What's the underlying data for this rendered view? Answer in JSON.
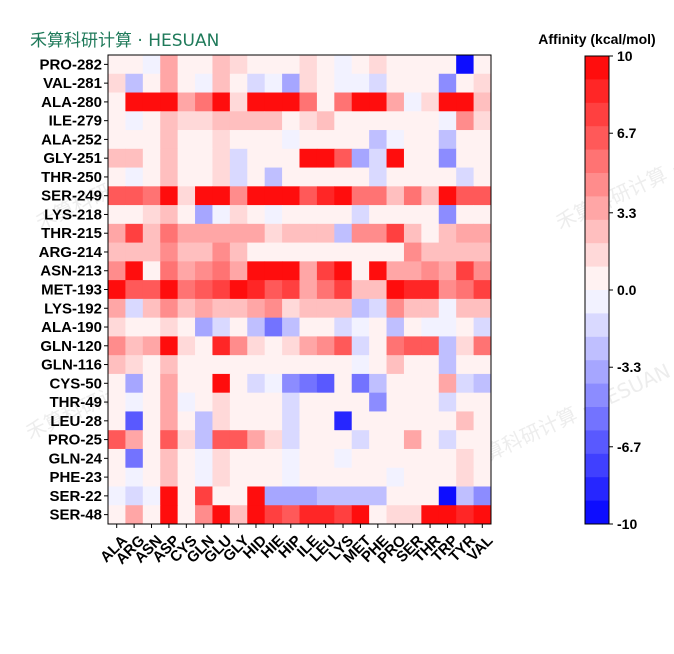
{
  "brand": {
    "label": "禾算科研计算 · HESUAN"
  },
  "watermark": {
    "text": "禾算科研计算 · HESUAN"
  },
  "chart_data": {
    "type": "heatmap",
    "title": "",
    "xlabel": "",
    "ylabel": "",
    "x_categories": [
      "ALA",
      "ARG",
      "ASN",
      "ASP",
      "CYS",
      "GLN",
      "GLU",
      "GLY",
      "HID",
      "HIE",
      "HIP",
      "ILE",
      "LEU",
      "LYS",
      "MET",
      "PHE",
      "PRO",
      "SER",
      "THR",
      "TRP",
      "TYR",
      "VAL"
    ],
    "y_categories": [
      "PRO-282",
      "VAL-281",
      "ALA-280",
      "ILE-279",
      "ALA-252",
      "GLY-251",
      "THR-250",
      "SER-249",
      "LYS-218",
      "THR-215",
      "ARG-214",
      "ASN-213",
      "MET-193",
      "LYS-192",
      "ALA-190",
      "GLN-120",
      "GLN-116",
      "CYS-50",
      "THR-49",
      "LEU-28",
      "PRO-25",
      "GLN-24",
      "PHE-23",
      "SER-22",
      "SER-48"
    ],
    "values": [
      [
        0,
        0,
        -1,
        3,
        0,
        0,
        2,
        1,
        0,
        0,
        0,
        1,
        0,
        -1,
        0,
        1,
        0,
        0,
        0,
        0,
        -10,
        0
      ],
      [
        1,
        -3,
        0,
        3,
        0,
        -1,
        2,
        0,
        -2,
        -1,
        -4,
        1,
        0,
        -1,
        -1,
        -2,
        0,
        0,
        0,
        -5,
        0,
        1
      ],
      [
        0,
        10,
        10,
        10,
        3,
        5,
        10,
        1,
        10,
        10,
        10,
        5,
        0,
        5,
        10,
        10,
        3,
        -1,
        1,
        10,
        10,
        2
      ],
      [
        0,
        -1,
        0,
        2,
        1,
        1,
        2,
        2,
        2,
        2,
        0,
        1,
        2,
        0,
        0,
        0,
        0,
        0,
        0,
        -1,
        4,
        1
      ],
      [
        0,
        0,
        0,
        2,
        0,
        0,
        1,
        0,
        0,
        0,
        -1,
        0,
        0,
        0,
        0,
        -3,
        -1,
        0,
        0,
        -3,
        0,
        0
      ],
      [
        2,
        2,
        0,
        2,
        0,
        0,
        1,
        -2,
        0,
        0,
        0,
        10,
        10,
        6,
        -4,
        -2,
        10,
        0,
        0,
        -5,
        0,
        0
      ],
      [
        0,
        -1,
        0,
        2,
        0,
        0,
        1,
        -2,
        0,
        -3,
        0,
        0,
        0,
        0,
        0,
        -2,
        0,
        0,
        0,
        0,
        -2,
        0
      ],
      [
        6,
        6,
        5,
        10,
        1,
        10,
        10,
        4,
        10,
        10,
        10,
        6,
        8,
        10,
        5,
        5,
        2,
        5,
        2,
        9,
        6,
        6
      ],
      [
        0,
        0,
        1,
        2,
        0,
        -4,
        -1,
        1,
        0,
        -1,
        0,
        0,
        0,
        0,
        -2,
        0,
        0,
        0,
        0,
        -5,
        0,
        0
      ],
      [
        3,
        7,
        2,
        5,
        3,
        3,
        3,
        3,
        3,
        1,
        2,
        2,
        2,
        -3,
        4,
        4,
        7,
        2,
        0,
        2,
        3,
        3
      ],
      [
        2,
        2,
        2,
        4,
        2,
        2,
        4,
        2,
        0,
        0,
        0,
        0,
        0,
        0,
        0,
        0,
        0,
        4,
        2,
        2,
        2,
        2
      ],
      [
        4,
        10,
        0,
        5,
        3,
        4,
        5,
        3,
        10,
        10,
        10,
        3,
        7,
        10,
        0,
        10,
        3,
        3,
        4,
        3,
        7,
        4
      ],
      [
        9,
        6,
        6,
        10,
        5,
        6,
        7,
        10,
        8,
        6,
        7,
        3,
        5,
        7,
        2,
        2,
        10,
        8,
        8,
        4,
        5,
        7
      ],
      [
        3,
        -2,
        2,
        4,
        2,
        3,
        2,
        2,
        3,
        4,
        1,
        2,
        2,
        2,
        -3,
        -2,
        4,
        2,
        2,
        -1,
        2,
        2
      ],
      [
        1,
        0,
        0,
        1,
        0,
        -4,
        -2,
        0,
        -3,
        -6,
        -3,
        0,
        0,
        -2,
        -1,
        0,
        -3,
        0,
        -1,
        -1,
        0,
        -2
      ],
      [
        4,
        2,
        3,
        10,
        1,
        0,
        8,
        4,
        1,
        0,
        1,
        3,
        4,
        6,
        -2,
        0,
        5,
        6,
        6,
        -3,
        1,
        5
      ],
      [
        2,
        1,
        0,
        2,
        0,
        0,
        0,
        0,
        0,
        0,
        0,
        0,
        0,
        0,
        -1,
        0,
        2,
        0,
        0,
        -3,
        0,
        0
      ],
      [
        0,
        -4,
        0,
        3,
        0,
        0,
        10,
        0,
        -2,
        -1,
        -5,
        -6,
        -7,
        0,
        -6,
        -3,
        0,
        0,
        0,
        3,
        -2,
        -3
      ],
      [
        0,
        -1,
        0,
        3,
        -1,
        0,
        1,
        0,
        0,
        0,
        -2,
        0,
        0,
        0,
        0,
        -5,
        0,
        0,
        0,
        -2,
        0,
        0
      ],
      [
        0,
        -7,
        0,
        3,
        0,
        -3,
        1,
        0,
        0,
        0,
        -2,
        0,
        0,
        -9,
        0,
        0,
        0,
        0,
        0,
        0,
        2,
        0
      ],
      [
        6,
        3,
        0,
        6,
        1,
        -3,
        6,
        6,
        3,
        1,
        -2,
        0,
        0,
        0,
        -2,
        0,
        0,
        3,
        0,
        -2,
        0,
        0
      ],
      [
        0,
        -6,
        0,
        2,
        0,
        -1,
        1,
        0,
        0,
        0,
        -1,
        0,
        0,
        -1,
        0,
        0,
        0,
        0,
        0,
        0,
        1,
        0
      ],
      [
        0,
        -1,
        0,
        2,
        0,
        -1,
        1,
        0,
        0,
        0,
        -1,
        0,
        0,
        0,
        0,
        0,
        -1,
        0,
        0,
        0,
        1,
        0
      ],
      [
        -1,
        -2,
        -1,
        10,
        0,
        7,
        0,
        0,
        10,
        -4,
        -4,
        -4,
        -3,
        -3,
        -3,
        -3,
        0,
        0,
        0,
        -10,
        -3,
        -5
      ],
      [
        0,
        3,
        0,
        10,
        0,
        4,
        10,
        2,
        10,
        7,
        6,
        8,
        8,
        7,
        10,
        0,
        1,
        1,
        10,
        10,
        8,
        10
      ]
    ],
    "colorbar": {
      "label": "Affinity (kcal/mol)",
      "min": -10,
      "max": 10,
      "levels": 20,
      "ticks": [
        10,
        6.7,
        3.3,
        0.0,
        -3.3,
        -6.7,
        -10
      ],
      "tick_labels": [
        "10",
        "6.7",
        "3.3",
        "0.0",
        "-3.3",
        "-6.7",
        "-10"
      ],
      "colormap": "bwr",
      "color_low": "#0000ff",
      "color_mid": "#ffffff",
      "color_high": "#ff0000"
    }
  }
}
